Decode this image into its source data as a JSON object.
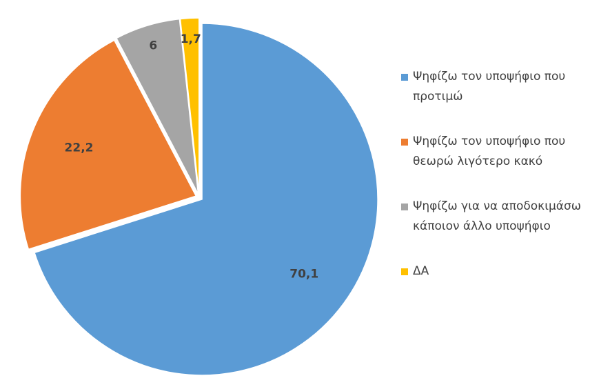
{
  "chart_data": {
    "type": "pie",
    "categories": [
      "Ψηφίζω τον υποψήφιο που προτιμώ",
      "Ψηφίζω τον υποψήφιο που θεωρώ λιγότερο κακό",
      "Ψηφίζω για να αποδοκιμάσω κάποιον άλλο υποψήφιο",
      "ΔΑ"
    ],
    "values": [
      70.1,
      22.2,
      6,
      1.7
    ],
    "value_labels": [
      "70,1",
      "22,2",
      "6",
      "1,7"
    ],
    "colors": [
      "#5b9bd5",
      "#ed7d31",
      "#a5a5a5",
      "#ffc000"
    ],
    "legend": "right"
  }
}
